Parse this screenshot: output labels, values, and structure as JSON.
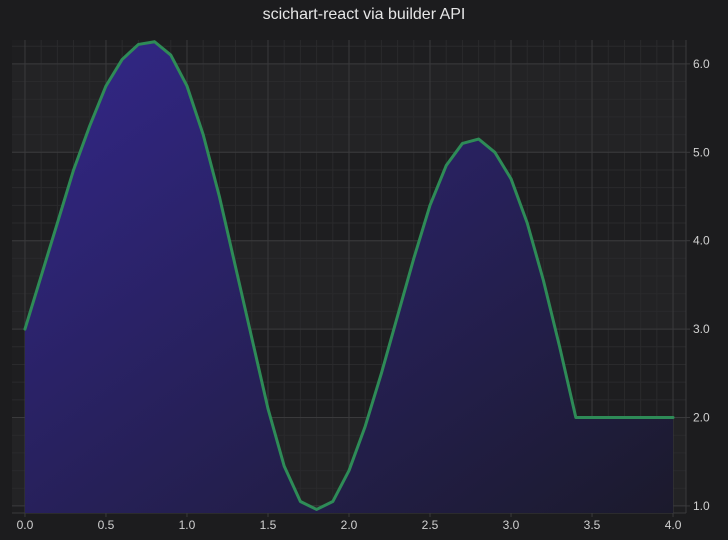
{
  "chart_data": {
    "type": "area",
    "title": "scichart-react via builder API",
    "xlabel": "",
    "ylabel": "",
    "xlim": [
      -0.08,
      4.08
    ],
    "ylim": [
      0.92,
      6.27
    ],
    "x_ticks": [
      "0.0",
      "0.5",
      "1.0",
      "1.5",
      "2.0",
      "2.5",
      "3.0",
      "3.5",
      "4.0"
    ],
    "y_ticks": [
      "1.0",
      "2.0",
      "3.0",
      "4.0",
      "5.0",
      "6.0"
    ],
    "y_axis_position": "right",
    "grid": true,
    "legend": "none",
    "colors": {
      "background": "#1c1c1e",
      "plot_band_a": "#1e1e20",
      "plot_band_b": "#232325",
      "grid_major": "#3a3a3c",
      "grid_minor": "#2a2a2c",
      "line": "#2e8b57",
      "fill_top": "#33278a",
      "fill_bottom": "#1b1a2c"
    },
    "series": [
      {
        "x": [
          0.0,
          0.1,
          0.2,
          0.3,
          0.4,
          0.5,
          0.6,
          0.7,
          0.8,
          0.9,
          1.0,
          1.1,
          1.2,
          1.3,
          1.4,
          1.5,
          1.6,
          1.7,
          1.8,
          1.9,
          2.0,
          2.1,
          2.2,
          2.3,
          2.4,
          2.5,
          2.6,
          2.7,
          2.8,
          2.9,
          3.0,
          3.1,
          3.2,
          3.3,
          3.4,
          3.5,
          3.6,
          3.7,
          3.8,
          3.9,
          4.0
        ],
        "y": [
          3.0,
          3.6,
          4.2,
          4.8,
          5.3,
          5.75,
          6.05,
          6.22,
          6.25,
          6.1,
          5.75,
          5.2,
          4.5,
          3.7,
          2.9,
          2.1,
          1.45,
          1.05,
          0.96,
          1.05,
          1.4,
          1.9,
          2.5,
          3.15,
          3.8,
          4.4,
          4.85,
          5.1,
          5.15,
          5.0,
          4.7,
          4.2,
          3.55,
          2.8,
          2.0,
          2.0,
          2.0,
          2.0,
          2.0,
          2.0,
          2.0
        ]
      }
    ]
  }
}
